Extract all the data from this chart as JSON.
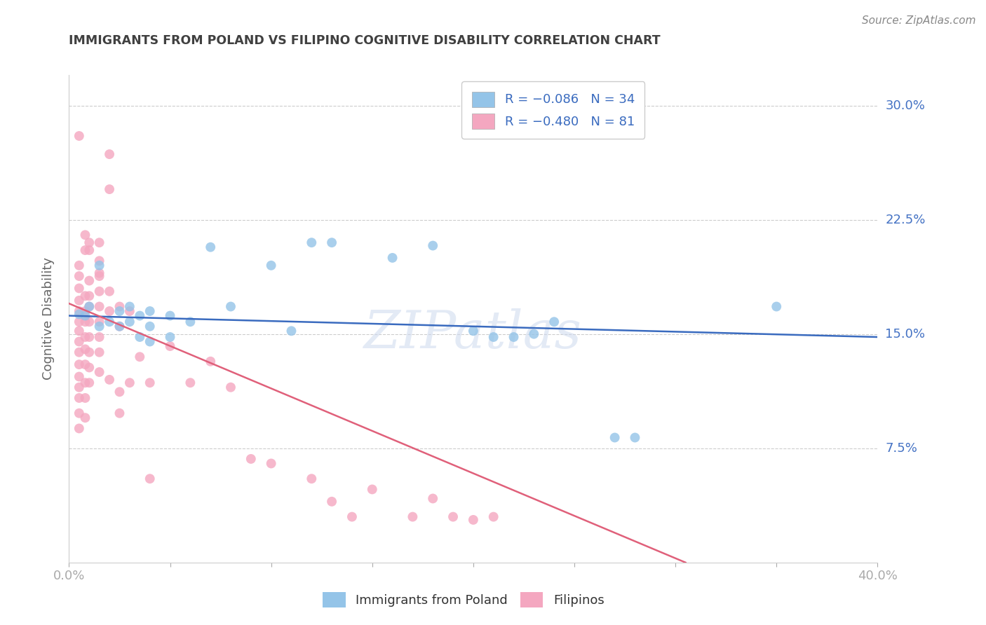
{
  "title": "IMMIGRANTS FROM POLAND VS FILIPINO COGNITIVE DISABILITY CORRELATION CHART",
  "source": "Source: ZipAtlas.com",
  "ylabel": "Cognitive Disability",
  "xlim": [
    0.0,
    0.4
  ],
  "ylim": [
    0.0,
    0.32
  ],
  "ytick_vals": [
    0.0,
    0.075,
    0.15,
    0.225,
    0.3
  ],
  "ytick_labels": [
    "",
    "7.5%",
    "15.0%",
    "22.5%",
    "30.0%"
  ],
  "xtick_vals": [
    0.0,
    0.05,
    0.1,
    0.15,
    0.2,
    0.25,
    0.3,
    0.35,
    0.4
  ],
  "poland_color": "#94c4e8",
  "filipino_color": "#f4a7c0",
  "poland_trendline_color": "#3a6bbf",
  "filipino_trendline_color": "#e0607a",
  "legend_text_color": "#3a6bbf",
  "poland_trend_x": [
    0.0,
    0.4
  ],
  "poland_trend_y": [
    0.162,
    0.148
  ],
  "filipino_trend_x": [
    0.0,
    0.305
  ],
  "filipino_trend_y": [
    0.17,
    0.0
  ],
  "poland_points": [
    [
      0.005,
      0.163
    ],
    [
      0.008,
      0.162
    ],
    [
      0.01,
      0.168
    ],
    [
      0.015,
      0.195
    ],
    [
      0.015,
      0.155
    ],
    [
      0.02,
      0.158
    ],
    [
      0.025,
      0.165
    ],
    [
      0.025,
      0.155
    ],
    [
      0.03,
      0.168
    ],
    [
      0.03,
      0.158
    ],
    [
      0.035,
      0.162
    ],
    [
      0.035,
      0.148
    ],
    [
      0.04,
      0.165
    ],
    [
      0.04,
      0.155
    ],
    [
      0.04,
      0.145
    ],
    [
      0.05,
      0.162
    ],
    [
      0.05,
      0.148
    ],
    [
      0.06,
      0.158
    ],
    [
      0.07,
      0.207
    ],
    [
      0.08,
      0.168
    ],
    [
      0.1,
      0.195
    ],
    [
      0.11,
      0.152
    ],
    [
      0.12,
      0.21
    ],
    [
      0.13,
      0.21
    ],
    [
      0.16,
      0.2
    ],
    [
      0.18,
      0.208
    ],
    [
      0.2,
      0.152
    ],
    [
      0.21,
      0.148
    ],
    [
      0.22,
      0.148
    ],
    [
      0.23,
      0.15
    ],
    [
      0.24,
      0.158
    ],
    [
      0.27,
      0.082
    ],
    [
      0.28,
      0.082
    ],
    [
      0.35,
      0.168
    ]
  ],
  "filipino_points": [
    [
      0.005,
      0.28
    ],
    [
      0.01,
      0.21
    ],
    [
      0.01,
      0.205
    ],
    [
      0.015,
      0.21
    ],
    [
      0.015,
      0.19
    ],
    [
      0.02,
      0.268
    ],
    [
      0.02,
      0.245
    ],
    [
      0.005,
      0.195
    ],
    [
      0.005,
      0.188
    ],
    [
      0.005,
      0.18
    ],
    [
      0.005,
      0.172
    ],
    [
      0.005,
      0.165
    ],
    [
      0.005,
      0.158
    ],
    [
      0.005,
      0.152
    ],
    [
      0.005,
      0.145
    ],
    [
      0.005,
      0.138
    ],
    [
      0.005,
      0.13
    ],
    [
      0.005,
      0.122
    ],
    [
      0.005,
      0.115
    ],
    [
      0.005,
      0.108
    ],
    [
      0.005,
      0.098
    ],
    [
      0.005,
      0.088
    ],
    [
      0.008,
      0.215
    ],
    [
      0.008,
      0.205
    ],
    [
      0.008,
      0.175
    ],
    [
      0.008,
      0.165
    ],
    [
      0.008,
      0.158
    ],
    [
      0.008,
      0.148
    ],
    [
      0.008,
      0.14
    ],
    [
      0.008,
      0.13
    ],
    [
      0.008,
      0.118
    ],
    [
      0.008,
      0.108
    ],
    [
      0.008,
      0.095
    ],
    [
      0.01,
      0.185
    ],
    [
      0.01,
      0.175
    ],
    [
      0.01,
      0.168
    ],
    [
      0.01,
      0.158
    ],
    [
      0.01,
      0.148
    ],
    [
      0.01,
      0.138
    ],
    [
      0.01,
      0.128
    ],
    [
      0.01,
      0.118
    ],
    [
      0.015,
      0.198
    ],
    [
      0.015,
      0.188
    ],
    [
      0.015,
      0.178
    ],
    [
      0.015,
      0.168
    ],
    [
      0.015,
      0.158
    ],
    [
      0.015,
      0.148
    ],
    [
      0.015,
      0.138
    ],
    [
      0.015,
      0.125
    ],
    [
      0.02,
      0.178
    ],
    [
      0.02,
      0.165
    ],
    [
      0.02,
      0.12
    ],
    [
      0.025,
      0.168
    ],
    [
      0.025,
      0.155
    ],
    [
      0.025,
      0.112
    ],
    [
      0.025,
      0.098
    ],
    [
      0.03,
      0.165
    ],
    [
      0.03,
      0.118
    ],
    [
      0.035,
      0.135
    ],
    [
      0.04,
      0.118
    ],
    [
      0.04,
      0.055
    ],
    [
      0.05,
      0.142
    ],
    [
      0.06,
      0.118
    ],
    [
      0.07,
      0.132
    ],
    [
      0.08,
      0.115
    ],
    [
      0.09,
      0.068
    ],
    [
      0.1,
      0.065
    ],
    [
      0.12,
      0.055
    ],
    [
      0.13,
      0.04
    ],
    [
      0.14,
      0.03
    ],
    [
      0.15,
      0.048
    ],
    [
      0.17,
      0.03
    ],
    [
      0.18,
      0.042
    ],
    [
      0.19,
      0.03
    ],
    [
      0.2,
      0.028
    ],
    [
      0.21,
      0.03
    ]
  ],
  "background_color": "#ffffff",
  "grid_color": "#cccccc",
  "tick_color": "#4472c4",
  "title_color": "#404040",
  "source_color": "#888888",
  "watermark_color": "#cdd9ee",
  "watermark_alpha": 0.55
}
